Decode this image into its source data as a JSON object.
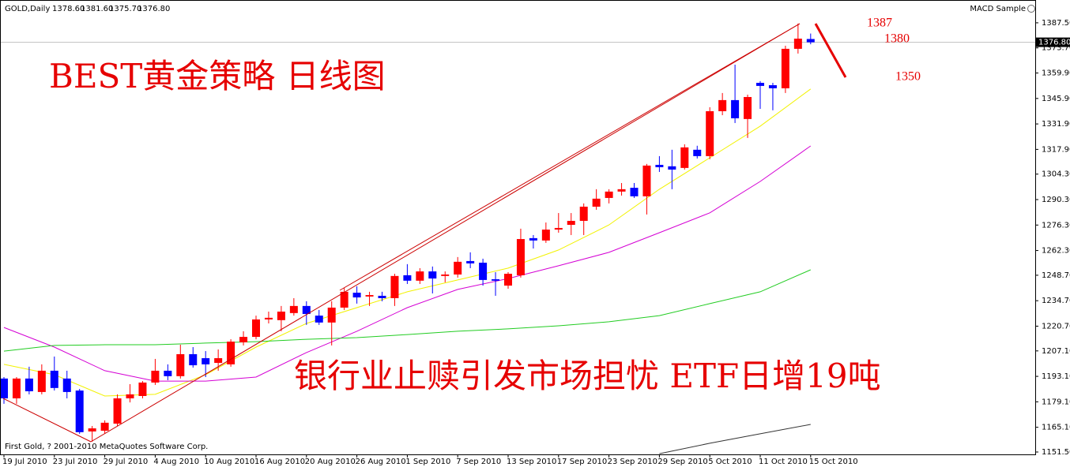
{
  "chart_data": {
    "type": "candlestick",
    "symbol": "GOLD,Daily",
    "ohlc_labels": [
      "1378.60",
      "1381.60",
      "1375.70",
      "1376.80"
    ],
    "indicator": "MACD Sample",
    "copyright": "First Gold, ? 2001-2010 MetaQuotes Software Corp.",
    "title": "BEST黄金策略  日线图",
    "subtitle": "银行业止赎引发市场担忧 ETF日增19吨",
    "annotations": [
      "1387",
      "1380",
      "1350"
    ],
    "up_color": "#ff0000",
    "down_color": "#0000ff",
    "categories": [
      "19 Jul 2010",
      null,
      null,
      null,
      "23 Jul 2010",
      null,
      null,
      null,
      "29 Jul 2010",
      null,
      null,
      null,
      "4 Aug 2010",
      null,
      null,
      null,
      "10 Aug 2010",
      null,
      null,
      null,
      "16 Aug 2010",
      null,
      null,
      null,
      "20 Aug 2010",
      null,
      null,
      null,
      "26 Aug 2010",
      null,
      null,
      null,
      "1 Sep 2010",
      null,
      null,
      null,
      "7 Sep 2010",
      null,
      null,
      null,
      "13 Sep 2010",
      null,
      null,
      null,
      "17 Sep 2010",
      null,
      null,
      null,
      "23 Sep 2010",
      null,
      null,
      null,
      "29 Sep 2010",
      null,
      null,
      null,
      "5 Oct 2010",
      null,
      null,
      null,
      "11 Oct 2010",
      null,
      null,
      null,
      "15 Oct 2010"
    ],
    "open": [
      1191.9,
      1181.0,
      1191.9,
      1184.5,
      1196.2,
      1191.9,
      1185.3,
      1162.8,
      1163.2,
      1167.1,
      1181.0,
      1182.3,
      1189.7,
      1196.2,
      1193.2,
      1205.3,
      1203.1,
      1200.5,
      1199.7,
      1211.8,
      1214.8,
      1224.4,
      1224.0,
      1227.9,
      1231.8,
      1226.5,
      1222.7,
      1230.9,
      1239.1,
      1237.0,
      1237.4,
      1236.1,
      1248.7,
      1245.7,
      1250.8,
      1248.3,
      1249.1,
      1256.5,
      1255.6,
      1246.5,
      1243.0,
      1248.7,
      1269.1,
      1267.8,
      1273.8,
      1276.4,
      1278.6,
      1286.4,
      1291.2,
      1294.7,
      1296.8,
      1292.1,
      1309.4,
      1308.6,
      1307.7,
      1317.7,
      1314.2,
      1338.9,
      1345.0,
      1334.6,
      1354.5,
      1353.2,
      1351.5,
      1373.2,
      1378.6
    ],
    "high": [
      1192.7,
      1192.7,
      1198.4,
      1199.7,
      1204.0,
      1196.2,
      1186.2,
      1165.8,
      1168.9,
      1183.2,
      1188.8,
      1190.5,
      1202.7,
      1199.7,
      1210.5,
      1209.2,
      1207.0,
      1207.9,
      1213.5,
      1217.9,
      1226.5,
      1228.7,
      1231.8,
      1236.1,
      1234.4,
      1229.6,
      1234.4,
      1241.7,
      1242.6,
      1239.6,
      1239.6,
      1249.5,
      1254.8,
      1252.6,
      1253.5,
      1250.8,
      1258.7,
      1261.3,
      1257.8,
      1250.4,
      1250.4,
      1274.3,
      1270.8,
      1277.7,
      1282.9,
      1282.9,
      1288.2,
      1296.0,
      1296.0,
      1299.4,
      1299.4,
      1309.9,
      1314.2,
      1317.7,
      1320.7,
      1319.9,
      1341.1,
      1348.9,
      1364.5,
      1348.0,
      1355.4,
      1354.5,
      1374.9,
      1387.1,
      1381.6
    ],
    "low": [
      1178.0,
      1178.0,
      1183.2,
      1183.2,
      1185.3,
      1181.0,
      1161.5,
      1157.2,
      1161.5,
      1165.8,
      1178.8,
      1181.0,
      1188.4,
      1191.0,
      1191.9,
      1197.9,
      1192.7,
      1196.2,
      1198.4,
      1210.1,
      1213.5,
      1222.2,
      1217.9,
      1226.5,
      1221.4,
      1221.4,
      1210.1,
      1229.6,
      1233.1,
      1231.8,
      1234.4,
      1231.8,
      1243.9,
      1243.9,
      1238.7,
      1244.8,
      1247.4,
      1252.6,
      1243.0,
      1237.4,
      1241.3,
      1247.4,
      1263.4,
      1266.5,
      1272.1,
      1270.8,
      1270.8,
      1284.7,
      1288.2,
      1292.5,
      1291.2,
      1282.1,
      1305.5,
      1296.0,
      1306.8,
      1312.9,
      1312.5,
      1336.7,
      1332.4,
      1324.2,
      1340.2,
      1339.4,
      1348.9,
      1370.6,
      1375.7
    ],
    "close": [
      1181.0,
      1191.9,
      1184.9,
      1196.2,
      1186.7,
      1184.5,
      1162.4,
      1164.5,
      1167.6,
      1181.0,
      1183.2,
      1189.7,
      1196.2,
      1193.2,
      1205.3,
      1199.2,
      1199.7,
      1203.1,
      1212.2,
      1214.8,
      1224.4,
      1225.3,
      1228.7,
      1231.8,
      1227.4,
      1222.7,
      1230.9,
      1239.6,
      1236.5,
      1237.8,
      1236.1,
      1248.3,
      1245.7,
      1250.8,
      1246.9,
      1249.1,
      1256.1,
      1255.2,
      1246.1,
      1245.7,
      1249.5,
      1268.6,
      1267.8,
      1273.8,
      1274.7,
      1278.6,
      1286.4,
      1290.8,
      1294.7,
      1296.0,
      1292.1,
      1309.0,
      1308.1,
      1306.8,
      1319.0,
      1314.2,
      1338.9,
      1345.0,
      1335.0,
      1346.7,
      1352.8,
      1351.5,
      1373.2,
      1378.8,
      1376.8
    ],
    "last_price_label": "1376.80",
    "moving_averages": [
      {
        "color": "#f2f200",
        "x": [
          0,
          4,
          8,
          12,
          16,
          20,
          24,
          28,
          32,
          36,
          40,
          44,
          48,
          52,
          56,
          60,
          64
        ],
        "values": [
          1199.7,
          1194.0,
          1182.3,
          1183.2,
          1194.0,
          1209.2,
          1222.2,
          1230.9,
          1239.6,
          1246.1,
          1252.6,
          1262.6,
          1276.4,
          1296.0,
          1313.3,
          1330.7,
          1351.1
        ]
      },
      {
        "color": "#d400d4",
        "x": [
          0,
          4,
          8,
          12,
          16,
          20,
          24,
          28,
          32,
          36,
          40,
          44,
          48,
          52,
          56,
          60,
          64
        ],
        "values": [
          1220.0,
          1209.2,
          1196.2,
          1190.5,
          1190.5,
          1192.7,
          1206.2,
          1217.9,
          1230.9,
          1240.9,
          1246.9,
          1253.9,
          1261.3,
          1272.1,
          1283.0,
          1300.3,
          1319.8
        ]
      },
      {
        "color": "#22cc22",
        "x": [
          0,
          4,
          8,
          12,
          16,
          20,
          24,
          28,
          32,
          36,
          40,
          44,
          48,
          52,
          56,
          60,
          64
        ],
        "values": [
          1207.0,
          1210.1,
          1210.5,
          1210.5,
          1211.4,
          1212.2,
          1213.5,
          1214.4,
          1216.1,
          1217.9,
          1219.2,
          1220.9,
          1223.1,
          1226.5,
          1233.1,
          1239.6,
          1251.7
        ]
      },
      {
        "color": "#333333",
        "x": [
          52,
          56,
          60,
          64
        ],
        "values": [
          1150.6,
          1156.3,
          1161.5,
          1166.7
        ]
      }
    ],
    "ylim": [
      1150.2,
      1390.5
    ],
    "yticks": [
      {
        "value": 1387.5,
        "label": "1387.50"
      },
      {
        "value": 1373.7,
        "label": "1373.70"
      },
      {
        "value": 1359.9,
        "label": "1359.90"
      },
      {
        "value": 1345.9,
        "label": "1345.90"
      },
      {
        "value": 1331.9,
        "label": "1331.90"
      },
      {
        "value": 1317.9,
        "label": "1317.90"
      },
      {
        "value": 1304.3,
        "label": "1304.30"
      },
      {
        "value": 1290.3,
        "label": "1290.30"
      },
      {
        "value": 1276.3,
        "label": "1276.30"
      },
      {
        "value": 1262.3,
        "label": "1262.30"
      },
      {
        "value": 1248.7,
        "label": "1248.70"
      },
      {
        "value": 1234.7,
        "label": "1234.70"
      },
      {
        "value": 1220.7,
        "label": "1220.70"
      },
      {
        "value": 1207.1,
        "label": "1207.10"
      },
      {
        "value": 1193.1,
        "label": "1193.10"
      },
      {
        "value": 1179.1,
        "label": "1179.10"
      },
      {
        "value": 1165.1,
        "label": "1165.10"
      },
      {
        "value": 1151.5,
        "label": "1151.50"
      }
    ]
  }
}
